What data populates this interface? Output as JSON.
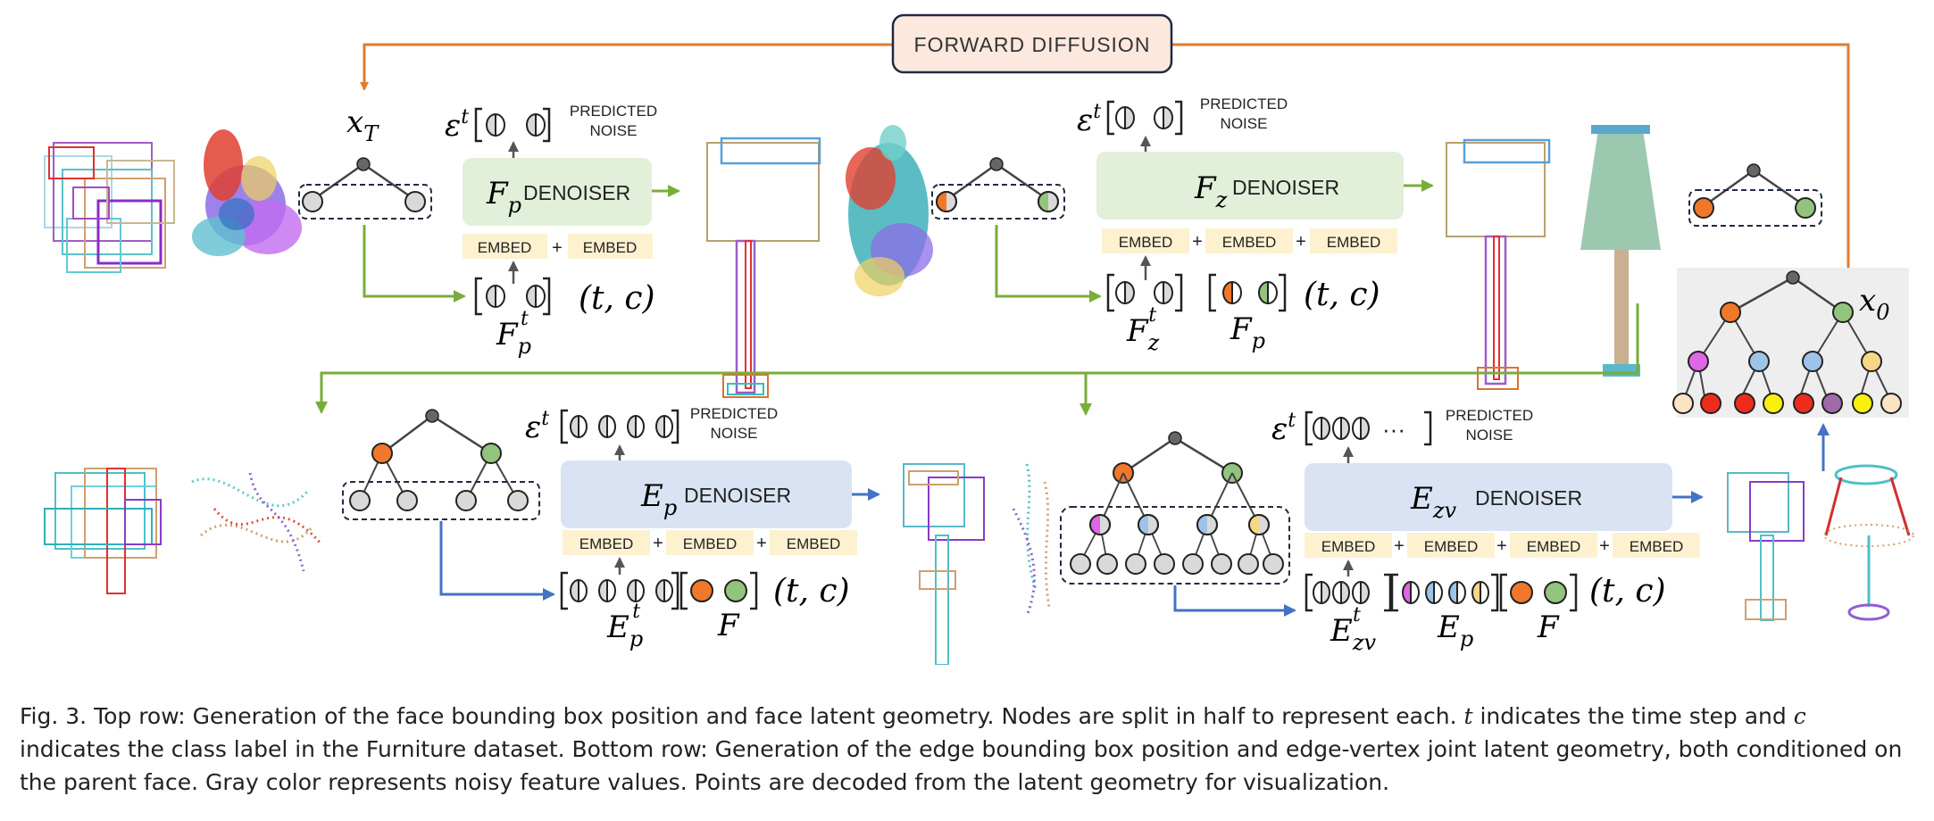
{
  "forward_label": "FORWARD DIFFUSION",
  "top_row": {
    "xT_label": "x",
    "xT_sub": "T",
    "fp": {
      "eps": "ε",
      "eps_sup": "t",
      "predicted": "PREDICTED",
      "noise": "NOISE",
      "sym": "F",
      "sym_sub": "p",
      "denoiser": "DENOISER",
      "embed": "EMBED",
      "plus": "+",
      "cond_tc": "(t, c)",
      "ft_label": "F",
      "ft_sub": "p",
      "ft_sup": "t"
    },
    "fz": {
      "eps": "ε",
      "eps_sup": "t",
      "predicted": "PREDICTED",
      "noise": "NOISE",
      "sym": "F",
      "sym_sub": "z",
      "denoiser": "DENOISER",
      "embed": "EMBED",
      "plus": "+",
      "cond_tc": "(t, c)",
      "ft_label": "F",
      "ft_sub": "z",
      "ft_sup": "t",
      "fp_label": "F",
      "fp_sub": "p"
    },
    "x0_label": "x",
    "x0_sub": "0"
  },
  "bottom_row": {
    "ep": {
      "eps": "ε",
      "eps_sup": "t",
      "predicted": "PREDICTED",
      "noise": "NOISE",
      "sym": "E",
      "sym_sub": "p",
      "denoiser": "DENOISER",
      "embed": "EMBED",
      "plus": "+",
      "cond_tc": "(t, c)",
      "et_label": "E",
      "et_sub": "p",
      "et_sup": "t",
      "f_label": "F"
    },
    "ezv": {
      "eps": "ε",
      "eps_sup": "t",
      "predicted": "PREDICTED",
      "noise": "NOISE",
      "dots": "···",
      "sym": "E",
      "sym_sub": "zv",
      "denoiser": "DENOISER",
      "embed": "EMBED",
      "plus": "+",
      "cond_tc": "(t, c)",
      "et_label": "E",
      "et_sub": "zv",
      "et_sup": "t",
      "ep_label": "E",
      "ep_sub": "p",
      "f_label": "F"
    }
  },
  "colors": {
    "orange_line": "#e07b2e",
    "green_line": "#79ad3a",
    "blue_line": "#4472c4",
    "green_box": "#e2efd9",
    "blue_box": "#dae3f3",
    "embed_box": "#fdf1d0",
    "forward_box": "#fde8de",
    "node_orange": "#f0782a",
    "node_green": "#93c47d",
    "node_gray": "#d9d9d9",
    "node_pink": "#e066e8",
    "node_blue": "#9ec3e8",
    "node_yellow": "#f6d687",
    "node_red": "#ee2c1c",
    "node_purple": "#9f6aa8",
    "node_bright_yellow": "#f8f00f",
    "node_cream": "#fbe3c4"
  },
  "caption": {
    "p1": "Fig. 3.  Top row: Generation of the face bounding box position and face latent geometry. Nodes are split in half to represent each. ",
    "t": "t",
    "p2": " indicates the time step and ",
    "c": "c",
    "p3": " indicates the class label in the Furniture dataset. Bottom row: Generation of the edge bounding box position and edge-vertex joint latent geometry, both conditioned on the parent face. Gray color represents noisy feature values. Points are decoded from the latent geometry for visualization."
  }
}
